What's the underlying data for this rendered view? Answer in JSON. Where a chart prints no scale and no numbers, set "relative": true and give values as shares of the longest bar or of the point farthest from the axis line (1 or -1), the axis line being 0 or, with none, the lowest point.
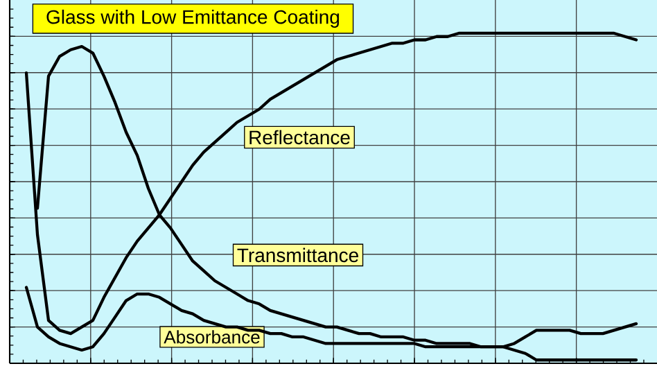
{
  "chart_data": {
    "type": "line",
    "title": "Glass with Low Emittance Coating",
    "relative": true,
    "grid": true,
    "legend": false,
    "marker": "none",
    "line_style": "solid",
    "categories": [
      null,
      null,
      null,
      null,
      null,
      null,
      null,
      null,
      null,
      null,
      null,
      null,
      null,
      null,
      null,
      null,
      null,
      null,
      null,
      null,
      null,
      null,
      null,
      null,
      null,
      null,
      null,
      null,
      null,
      null,
      null,
      null,
      null,
      null,
      null,
      null,
      null,
      null,
      null,
      null,
      null,
      null,
      null,
      null,
      null,
      null,
      null,
      null,
      null,
      null,
      null,
      null,
      null,
      null,
      null,
      null
    ],
    "series": [
      {
        "name": "Reflectance",
        "color": "#000000",
        "values": [
          0.88,
          0.39,
          0.13,
          0.1,
          0.09,
          0.11,
          0.13,
          0.2,
          0.26,
          0.32,
          0.37,
          0.41,
          0.45,
          0.5,
          0.55,
          0.6,
          0.64,
          0.67,
          0.7,
          0.73,
          0.75,
          0.77,
          0.8,
          0.82,
          0.84,
          0.86,
          0.88,
          0.9,
          0.92,
          0.93,
          0.94,
          0.95,
          0.96,
          0.97,
          0.97,
          0.98,
          0.98,
          0.99,
          0.99,
          1.0,
          1.0,
          1.0,
          1.0,
          1.0,
          1.0,
          1.0,
          1.0,
          1.0,
          1.0,
          1.0,
          1.0,
          1.0,
          1.0,
          1.0,
          0.99,
          0.98
        ]
      },
      {
        "name": "Transmittance",
        "color": "#000000",
        "values": [
          null,
          0.47,
          0.87,
          0.93,
          0.95,
          0.96,
          0.94,
          0.87,
          0.79,
          0.7,
          0.63,
          0.53,
          0.45,
          0.41,
          0.36,
          0.31,
          0.28,
          0.25,
          0.23,
          0.21,
          0.19,
          0.18,
          0.16,
          0.15,
          0.14,
          0.13,
          0.12,
          0.11,
          0.11,
          0.1,
          0.09,
          0.09,
          0.08,
          0.08,
          0.08,
          0.07,
          0.07,
          0.06,
          0.06,
          0.06,
          0.06,
          0.05,
          0.05,
          0.05,
          0.04,
          0.03,
          0.01,
          0.01,
          0.01,
          0.01,
          0.01,
          0.01,
          0.01,
          0.01,
          0.01,
          0.01
        ]
      },
      {
        "name": "Absorbance",
        "color": "#000000",
        "values": [
          0.23,
          0.11,
          0.08,
          0.06,
          0.05,
          0.04,
          0.05,
          0.09,
          0.14,
          0.19,
          0.21,
          0.21,
          0.2,
          0.18,
          0.16,
          0.15,
          0.13,
          0.12,
          0.11,
          0.11,
          0.1,
          0.1,
          0.09,
          0.09,
          0.08,
          0.08,
          0.07,
          0.06,
          0.06,
          0.06,
          0.06,
          0.06,
          0.06,
          0.06,
          0.06,
          0.06,
          0.05,
          0.05,
          0.05,
          0.05,
          0.05,
          0.05,
          0.05,
          0.05,
          0.06,
          0.08,
          0.1,
          0.1,
          0.1,
          0.1,
          0.09,
          0.09,
          0.09,
          0.1,
          0.11,
          0.12
        ]
      }
    ]
  }
}
